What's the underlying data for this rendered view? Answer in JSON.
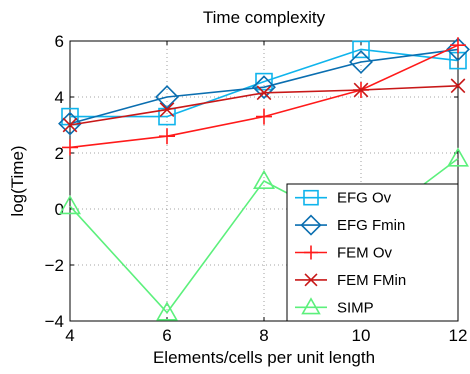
{
  "chart_data": {
    "type": "line",
    "title": "Time complexity",
    "xlabel": "Elements/cells per unit length",
    "ylabel": "log(Time)",
    "x": [
      4,
      6,
      8,
      10,
      12
    ],
    "xlim": [
      4,
      12
    ],
    "ylim": [
      -4,
      6
    ],
    "xticks": [
      4,
      6,
      8,
      10,
      12
    ],
    "yticks": [
      -4,
      -2,
      0,
      2,
      4,
      6
    ],
    "grid": true,
    "legend_position": "lower-right",
    "series": [
      {
        "name": "EFG Ov",
        "color": "#0fb4ec",
        "marker": "square",
        "values": [
          3.3,
          3.3,
          4.55,
          5.7,
          5.3
        ]
      },
      {
        "name": "EFG Fmin",
        "color": "#0a6eb0",
        "marker": "diamond",
        "values": [
          3.05,
          4.0,
          4.35,
          5.25,
          5.7
        ]
      },
      {
        "name": "FEM Ov",
        "color": "#ff1a1a",
        "marker": "plus",
        "values": [
          2.2,
          2.6,
          3.3,
          4.25,
          5.85
        ]
      },
      {
        "name": "FEM FMin",
        "color": "#c81818",
        "marker": "x",
        "values": [
          3.0,
          3.55,
          4.15,
          4.25,
          4.4
        ]
      },
      {
        "name": "SIMP",
        "color": "#5cf07c",
        "marker": "triangle",
        "values": [
          0.1,
          -3.7,
          1.0,
          -0.8,
          1.8
        ]
      }
    ]
  }
}
